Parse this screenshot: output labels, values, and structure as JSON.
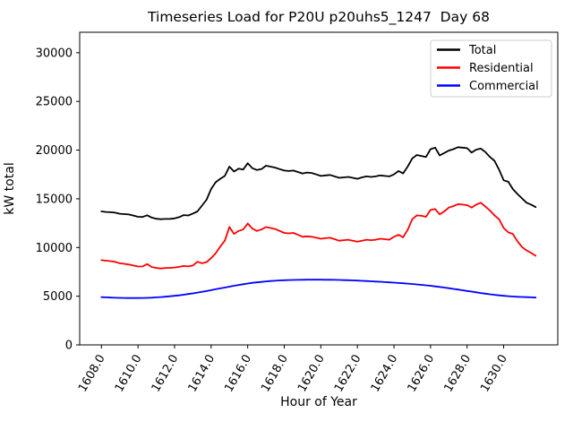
{
  "chart_data": {
    "type": "line",
    "title": "Timeseries Load for P20U p20uhs5_1247  Day 68",
    "xlabel": "Hour of Year",
    "ylabel": "kW total",
    "xlim": [
      1606.81,
      1632.96
    ],
    "ylim": [
      0,
      32100
    ],
    "grid": false,
    "legend": {
      "location": "upper right"
    },
    "xticks": [
      1608,
      1610,
      1612,
      1614,
      1616,
      1618,
      1620,
      1622,
      1624,
      1626,
      1628,
      1630
    ],
    "xtick_labels": [
      "1608.0",
      "1610.0",
      "1612.0",
      "1614.0",
      "1616.0",
      "1618.0",
      "1620.0",
      "1622.0",
      "1624.0",
      "1626.0",
      "1628.0",
      "1630.0"
    ],
    "xtick_rotation": 60,
    "yticks": [
      0,
      5000,
      10000,
      15000,
      20000,
      25000,
      30000
    ],
    "ytick_labels": [
      "0",
      "5000",
      "10000",
      "15000",
      "20000",
      "25000",
      "30000"
    ],
    "x": [
      1608.0,
      1608.25,
      1608.5,
      1608.75,
      1609.0,
      1609.25,
      1609.5,
      1609.75,
      1610.0,
      1610.25,
      1610.5,
      1610.75,
      1611.0,
      1611.25,
      1611.5,
      1611.75,
      1612.0,
      1612.25,
      1612.5,
      1612.75,
      1613.0,
      1613.25,
      1613.5,
      1613.75,
      1614.0,
      1614.25,
      1614.5,
      1614.75,
      1615.0,
      1615.25,
      1615.5,
      1615.75,
      1616.0,
      1616.25,
      1616.5,
      1616.75,
      1617.0,
      1617.25,
      1617.5,
      1617.75,
      1618.0,
      1618.25,
      1618.5,
      1618.75,
      1619.0,
      1619.25,
      1619.5,
      1619.75,
      1620.0,
      1620.25,
      1620.5,
      1620.75,
      1621.0,
      1621.25,
      1621.5,
      1621.75,
      1622.0,
      1622.25,
      1622.5,
      1622.75,
      1623.0,
      1623.25,
      1623.5,
      1623.75,
      1624.0,
      1624.25,
      1624.5,
      1624.75,
      1625.0,
      1625.25,
      1625.5,
      1625.75,
      1626.0,
      1626.25,
      1626.5,
      1626.75,
      1627.0,
      1627.25,
      1627.5,
      1627.75,
      1628.0,
      1628.25,
      1628.5,
      1628.75,
      1629.0,
      1629.25,
      1629.5,
      1629.75,
      1630.0,
      1630.25,
      1630.5,
      1630.75,
      1631.0,
      1631.25,
      1631.5,
      1631.75
    ],
    "series": [
      {
        "name": "Total",
        "color": "#000000",
        "values": [
          13700,
          13650,
          13620,
          13580,
          13470,
          13430,
          13390,
          13280,
          13150,
          13130,
          13310,
          13070,
          12950,
          12900,
          12930,
          12940,
          12990,
          13120,
          13330,
          13290,
          13480,
          13700,
          14300,
          14900,
          16000,
          16700,
          17050,
          17350,
          18300,
          17800,
          18100,
          18000,
          18650,
          18150,
          17950,
          18050,
          18400,
          18300,
          18200,
          18050,
          17900,
          17850,
          17900,
          17750,
          17600,
          17700,
          17650,
          17500,
          17350,
          17400,
          17450,
          17300,
          17150,
          17200,
          17250,
          17150,
          17050,
          17200,
          17300,
          17250,
          17300,
          17400,
          17350,
          17300,
          17500,
          17850,
          17600,
          18300,
          19150,
          19500,
          19400,
          19300,
          20100,
          20250,
          19450,
          19700,
          19950,
          20100,
          20300,
          20250,
          20200,
          19750,
          20050,
          20150,
          19800,
          19300,
          18900,
          18000,
          16900,
          16750,
          16000,
          15500,
          15050,
          14600,
          14400,
          14150
        ]
      },
      {
        "name": "Residential",
        "color": "#ff0000",
        "values": [
          8700,
          8650,
          8600,
          8530,
          8380,
          8320,
          8250,
          8150,
          8050,
          8060,
          8300,
          8000,
          7900,
          7850,
          7900,
          7910,
          7950,
          8010,
          8100,
          8060,
          8150,
          8540,
          8380,
          8500,
          8900,
          9400,
          10100,
          10700,
          12100,
          11400,
          11700,
          11850,
          12460,
          11950,
          11700,
          11850,
          12100,
          12000,
          11900,
          11700,
          11500,
          11450,
          11500,
          11300,
          11100,
          11150,
          11100,
          11000,
          10900,
          10950,
          11000,
          10850,
          10700,
          10750,
          10800,
          10700,
          10600,
          10700,
          10800,
          10750,
          10800,
          10900,
          10850,
          10800,
          11100,
          11300,
          11050,
          11800,
          12900,
          13300,
          13250,
          13150,
          13850,
          13950,
          13400,
          13700,
          14100,
          14250,
          14450,
          14400,
          14350,
          14100,
          14400,
          14600,
          14200,
          13800,
          13300,
          12900,
          12000,
          11550,
          11400,
          10650,
          10050,
          9700,
          9450,
          9150
        ]
      },
      {
        "name": "Commercial",
        "color": "#0000ff",
        "values": [
          4900,
          4880,
          4860,
          4840,
          4830,
          4820,
          4810,
          4810,
          4810,
          4820,
          4830,
          4850,
          4880,
          4910,
          4950,
          4990,
          5040,
          5090,
          5150,
          5220,
          5290,
          5370,
          5450,
          5530,
          5620,
          5710,
          5800,
          5890,
          5980,
          6070,
          6150,
          6230,
          6300,
          6370,
          6420,
          6470,
          6520,
          6560,
          6590,
          6620,
          6640,
          6660,
          6670,
          6680,
          6690,
          6700,
          6700,
          6700,
          6700,
          6690,
          6690,
          6680,
          6670,
          6650,
          6640,
          6620,
          6600,
          6580,
          6560,
          6530,
          6500,
          6480,
          6450,
          6420,
          6390,
          6360,
          6330,
          6290,
          6250,
          6210,
          6160,
          6120,
          6070,
          6010,
          5950,
          5890,
          5820,
          5750,
          5680,
          5610,
          5540,
          5470,
          5400,
          5330,
          5260,
          5200,
          5140,
          5090,
          5040,
          5000,
          4970,
          4940,
          4920,
          4900,
          4880,
          4860
        ]
      }
    ]
  }
}
